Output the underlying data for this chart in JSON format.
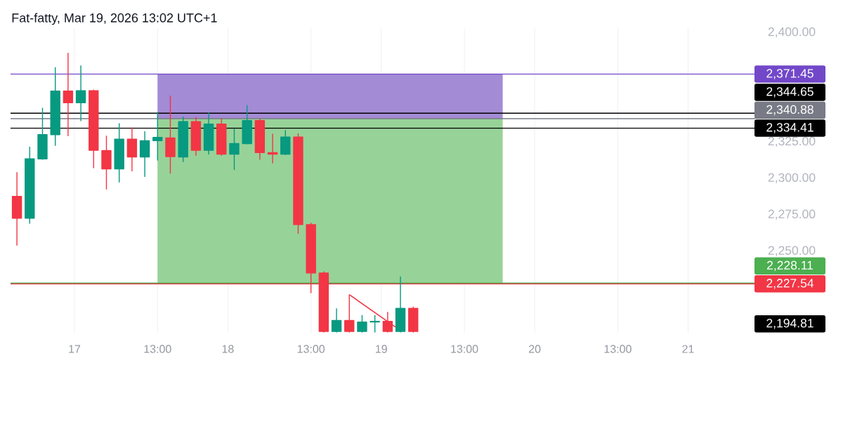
{
  "chart_data": {
    "type": "candlestick",
    "title": "Fat-fatty, Mar 19, 2026 13:02 UTC+1",
    "x": [
      "2026-03-16T15:00",
      "2026-03-16T17:00",
      "2026-03-16T19:00",
      "2026-03-16T21:00",
      "2026-03-16T23:00",
      "2026-03-17T01:00",
      "2026-03-17T03:00",
      "2026-03-17T05:00",
      "2026-03-17T07:00",
      "2026-03-17T09:00",
      "2026-03-17T11:00",
      "2026-03-17T13:00",
      "2026-03-17T15:00",
      "2026-03-17T17:00",
      "2026-03-17T19:00",
      "2026-03-17T21:00",
      "2026-03-17T23:00",
      "2026-03-18T01:00",
      "2026-03-18T03:00",
      "2026-03-18T05:00",
      "2026-03-18T07:00",
      "2026-03-18T09:00",
      "2026-03-18T11:00",
      "2026-03-18T13:00",
      "2026-03-18T15:00",
      "2026-03-18T17:00",
      "2026-03-18T19:00",
      "2026-03-18T21:00",
      "2026-03-18T23:00",
      "2026-03-19T01:00",
      "2026-03-19T03:00",
      "2026-03-19T05:00"
    ],
    "ohlc": [
      [
        2287.6,
        2304.1,
        2254.1,
        2272.6
      ],
      [
        2272.6,
        2321.6,
        2269.1,
        2313.3
      ],
      [
        2313.3,
        2348.3,
        2313.0,
        2329.9
      ],
      [
        2329.9,
        2376.2,
        2322.5,
        2359.8
      ],
      [
        2359.8,
        2386.0,
        2329.2,
        2351.8
      ],
      [
        2351.8,
        2377.3,
        2339.4,
        2360.1
      ],
      [
        2360.1,
        2360.7,
        2307.2,
        2319.2
      ],
      [
        2319.0,
        2329.2,
        2292.6,
        2306.4
      ],
      [
        2306.4,
        2337.7,
        2297.4,
        2326.8
      ],
      [
        2326.8,
        2334.9,
        2305.0,
        2314.6
      ],
      [
        2314.6,
        2332.2,
        2301.2,
        2325.7
      ],
      [
        2325.8,
        2345.5,
        2312.4,
        2328.0
      ],
      [
        2327.6,
        2356.6,
        2303.4,
        2314.9
      ],
      [
        2314.6,
        2342.3,
        2311.4,
        2338.8
      ],
      [
        2338.8,
        2342.0,
        2315.7,
        2319.2
      ],
      [
        2319.2,
        2345.1,
        2316.5,
        2337.2
      ],
      [
        2337.2,
        2341.0,
        2315.7,
        2316.5
      ],
      [
        2316.5,
        2334.0,
        2306.0,
        2323.8
      ],
      [
        2323.8,
        2350.2,
        2323.5,
        2339.6
      ],
      [
        2339.6,
        2341.2,
        2313.0,
        2317.6
      ],
      [
        2317.6,
        2330.5,
        2310.4,
        2316.5
      ],
      [
        2316.5,
        2333.0,
        2316.2,
        2328.3
      ],
      [
        2328.3,
        2330.8,
        2262.2,
        2268.2
      ],
      [
        2268.2,
        2269.5,
        2221.5,
        2235.0
      ],
      [
        2235.0,
        2236.1,
        2194.5,
        2195.0
      ],
      [
        2195.0,
        2210.7,
        2194.5,
        2202.4
      ],
      [
        2202.4,
        2220.2,
        2194.5,
        2195.0
      ],
      [
        2195.0,
        2206.2,
        2194.5,
        2201.4
      ],
      [
        2201.4,
        2206.2,
        2194.5,
        2201.8
      ],
      [
        2201.8,
        2208.3,
        2194.5,
        2195.0
      ],
      [
        2195.0,
        2232.7,
        2194.5,
        2210.7
      ],
      [
        2210.7,
        2211.9,
        2194.5,
        2195.0
      ]
    ],
    "colors": [
      "#f23645",
      "#089981",
      "#089981",
      "#089981",
      "#f23645",
      "#089981",
      "#f23645",
      "#f23645",
      "#089981",
      "#f23645",
      "#089981",
      "#089981",
      "#f23645",
      "#089981",
      "#f23645",
      "#089981",
      "#f23645",
      "#089981",
      "#089981",
      "#f23645",
      "#f23645",
      "#089981",
      "#f23645",
      "#f23645",
      "#f23645",
      "#089981",
      "#f23645",
      "#089981",
      "#089981",
      "#f23645",
      "#089981",
      "#f23645"
    ],
    "series": [
      {
        "type": "area",
        "x": [
          "2026-03-17T13:00",
          "2026-03-19T19:00"
        ],
        "values": [
          null,
          null
        ],
        "upper": [
          2371.5,
          2371.5
        ],
        "lower": [
          2340.9,
          2340.9
        ],
        "color": "#a38bd6"
      },
      {
        "type": "area",
        "x": [
          "2026-03-17T13:00",
          "2026-03-19T19:00"
        ],
        "values": [
          null,
          null
        ],
        "upper": [
          2340.9,
          2340.9
        ],
        "lower": [
          2228.1,
          2228.1
        ],
        "color": "#97d398"
      },
      {
        "type": "line",
        "x": [
          "2026-03-18T19:00",
          "2026-03-19T02:12"
        ],
        "values": [
          2220.2,
          2198.0
        ],
        "color": "#f23645"
      }
    ],
    "xlim": [
      "2026-03-16T14:00",
      "2026-03-21T10:30"
    ],
    "xticks": [
      {
        "value": "2026-03-17",
        "label": "17"
      },
      {
        "value": "2026-03-17T13:00",
        "label": "13:00"
      },
      {
        "value": "2026-03-18",
        "label": "18"
      },
      {
        "value": "2026-03-18T13:00",
        "label": "13:00"
      },
      {
        "value": "2026-03-19",
        "label": "19"
      },
      {
        "value": "2026-03-19T13:00",
        "label": "13:00"
      },
      {
        "value": "2026-03-20",
        "label": "20"
      },
      {
        "value": "2026-03-20T13:00",
        "label": "13:00"
      },
      {
        "value": "2026-03-21",
        "label": "21"
      }
    ],
    "ylim": [
      2194,
      2403
    ],
    "yticks": [
      {
        "value": 2250,
        "label": "2,250.00"
      },
      {
        "value": 2275,
        "label": "2,275.00"
      },
      {
        "value": 2300,
        "label": "2,300.00"
      },
      {
        "value": 2325,
        "label": "2,325.00"
      },
      {
        "value": 2400,
        "label": "2,400.00"
      }
    ],
    "ref_lines": [
      {
        "axis": "y",
        "value": 2371.45,
        "label": "2,371.45",
        "color": "#7248c9"
      },
      {
        "axis": "y",
        "value": 2344.65,
        "label": "2,344.65",
        "color": "#000000"
      },
      {
        "axis": "y",
        "value": 2340.88,
        "label": "2,340.88",
        "color": "#787b86"
      },
      {
        "axis": "y",
        "value": 2334.41,
        "label": "2,334.41",
        "color": "#000000"
      },
      {
        "axis": "y",
        "value": 2228.11,
        "label": "2,228.11",
        "color": "#4caf50"
      },
      {
        "axis": "y",
        "value": 2227.54,
        "label": "2,227.54",
        "color": "#f23645"
      }
    ],
    "annotations": [
      "2,194.81"
    ],
    "grid": "x"
  }
}
